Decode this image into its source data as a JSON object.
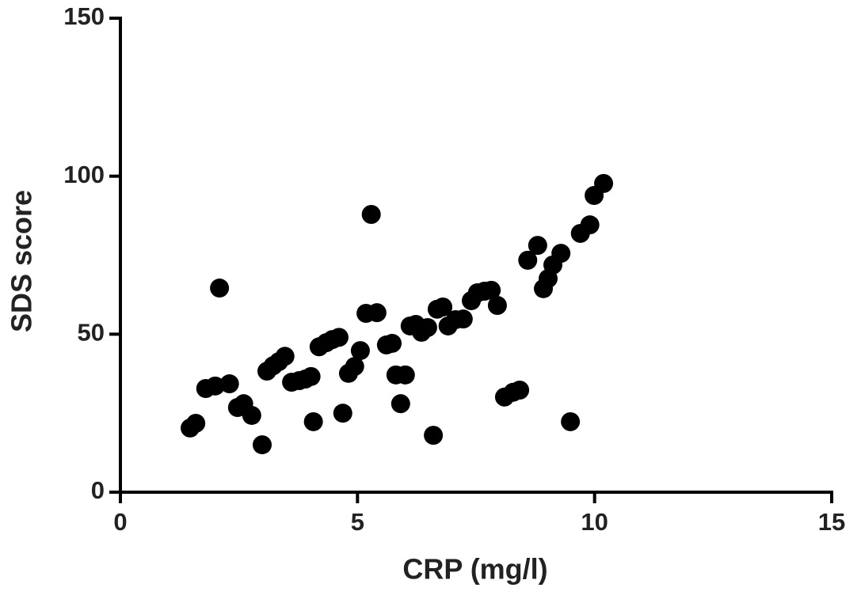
{
  "chart_data": {
    "type": "scatter",
    "x_label": "CRP (mg/l)",
    "y_label": "SDS score",
    "x": [
      1.47,
      1.59,
      1.8,
      2.0,
      2.09,
      2.3,
      2.47,
      2.6,
      2.77,
      2.99,
      3.09,
      3.22,
      3.34,
      3.47,
      3.61,
      3.77,
      3.9,
      4.02,
      4.07,
      4.19,
      4.34,
      4.47,
      4.61,
      4.69,
      4.81,
      4.94,
      5.06,
      5.18,
      5.29,
      5.41,
      5.61,
      5.73,
      5.81,
      5.91,
      6.01,
      6.11,
      6.23,
      6.35,
      6.48,
      6.6,
      6.68,
      6.8,
      6.91,
      7.07,
      7.23,
      7.4,
      7.53,
      7.68,
      7.82,
      7.95,
      8.1,
      8.28,
      8.42,
      8.59,
      8.8,
      8.92,
      9.02,
      9.12,
      9.29,
      9.49,
      9.7,
      9.9,
      9.99,
      10.19
    ],
    "y": [
      20.3,
      21.8,
      32.8,
      33.6,
      64.6,
      34.3,
      26.8,
      28,
      24.3,
      15,
      38.3,
      40,
      41.3,
      43,
      34.8,
      35.3,
      35.8,
      36.6,
      22.3,
      46,
      47.3,
      48.3,
      49,
      25,
      37.6,
      39.8,
      44.8,
      56.6,
      87.9,
      56.8,
      46.6,
      47.1,
      37.1,
      28,
      37.1,
      52.6,
      53.1,
      50.6,
      52.1,
      18,
      57.9,
      58.6,
      52.6,
      54.6,
      54.8,
      60.6,
      63.1,
      63.6,
      63.9,
      59.1,
      30.1,
      31.6,
      32.3,
      73.4,
      78.1,
      64.4,
      67.6,
      71.9,
      75.6,
      22.3,
      81.9,
      84.6,
      93.9,
      97.7
    ],
    "color": "#000000",
    "xlim": [
      0,
      15
    ],
    "xticks": [
      0,
      5,
      10,
      15
    ],
    "ylim": [
      0,
      150
    ],
    "yticks": [
      0,
      50,
      100,
      150
    ]
  }
}
